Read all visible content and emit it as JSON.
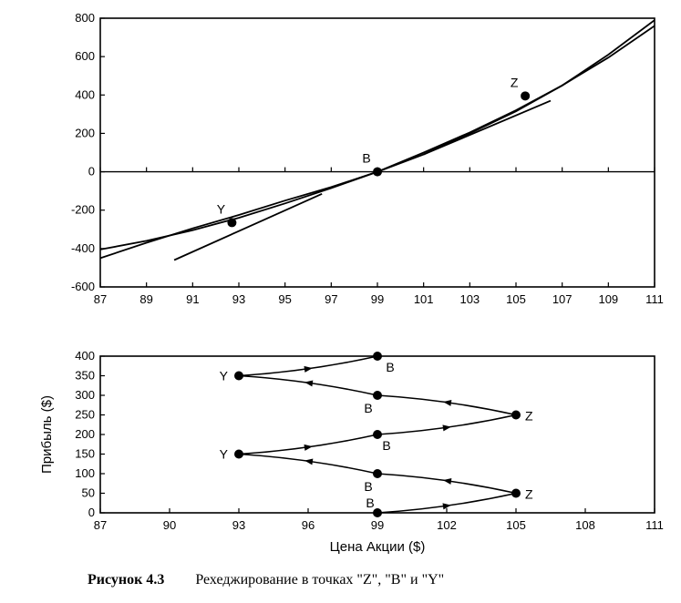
{
  "chart_data": [
    {
      "type": "line",
      "xlim": [
        87,
        111
      ],
      "ylim": [
        -600,
        800
      ],
      "x_ticks": [
        87,
        89,
        91,
        93,
        95,
        97,
        99,
        101,
        103,
        105,
        107,
        109,
        111
      ],
      "y_ticks": [
        -600,
        -400,
        -200,
        0,
        200,
        400,
        600,
        800
      ],
      "grid": false,
      "series": [
        {
          "x": [
            87,
            89,
            91,
            93,
            95,
            97,
            99,
            101,
            103,
            105,
            107,
            109,
            111
          ],
          "y": [
            -405,
            -360,
            -305,
            -240,
            -165,
            -85,
            0,
            100,
            205,
            320,
            450,
            595,
            760
          ]
        },
        {
          "x": [
            87,
            89,
            91,
            93,
            95,
            97,
            99,
            101,
            103,
            105,
            107,
            109,
            111
          ],
          "y": [
            -450,
            -370,
            -295,
            -225,
            -150,
            -80,
            0,
            90,
            200,
            315,
            450,
            610,
            790
          ]
        },
        {
          "x": [
            90.2,
            96.6
          ],
          "y": [
            -460,
            -115
          ]
        },
        {
          "x": [
            101,
            106.5
          ],
          "y": [
            90,
            370
          ]
        }
      ],
      "points": [
        {
          "label": "Y",
          "x": 92.7,
          "y": -265
        },
        {
          "label": "B",
          "x": 99,
          "y": 0
        },
        {
          "label": "Z",
          "x": 105.4,
          "y": 395
        }
      ]
    },
    {
      "type": "line",
      "xlabel": "Цена Акции ($)",
      "ylabel": "Прибыль ($)",
      "xlim": [
        87,
        111
      ],
      "ylim": [
        0,
        400
      ],
      "x_ticks": [
        87,
        90,
        93,
        96,
        99,
        102,
        105,
        108,
        111
      ],
      "y_ticks": [
        0,
        50,
        100,
        150,
        200,
        250,
        300,
        350,
        400
      ],
      "grid": false,
      "path": [
        {
          "label": "B",
          "x": 99,
          "y": 0
        },
        {
          "label": "Z",
          "x": 105,
          "y": 50
        },
        {
          "label": "B",
          "x": 99,
          "y": 100
        },
        {
          "label": "Y",
          "x": 93,
          "y": 150
        },
        {
          "label": "B",
          "x": 99,
          "y": 200
        },
        {
          "label": "Z",
          "x": 105,
          "y": 250
        },
        {
          "label": "B",
          "x": 99,
          "y": 300
        },
        {
          "label": "Y",
          "x": 93,
          "y": 350
        },
        {
          "label": "B",
          "x": 99,
          "y": 400
        }
      ]
    }
  ],
  "caption": {
    "number": "Рисунок 4.3",
    "text": "Рехеджирование в точках \"Z\", \"B\" и \"Y\""
  }
}
